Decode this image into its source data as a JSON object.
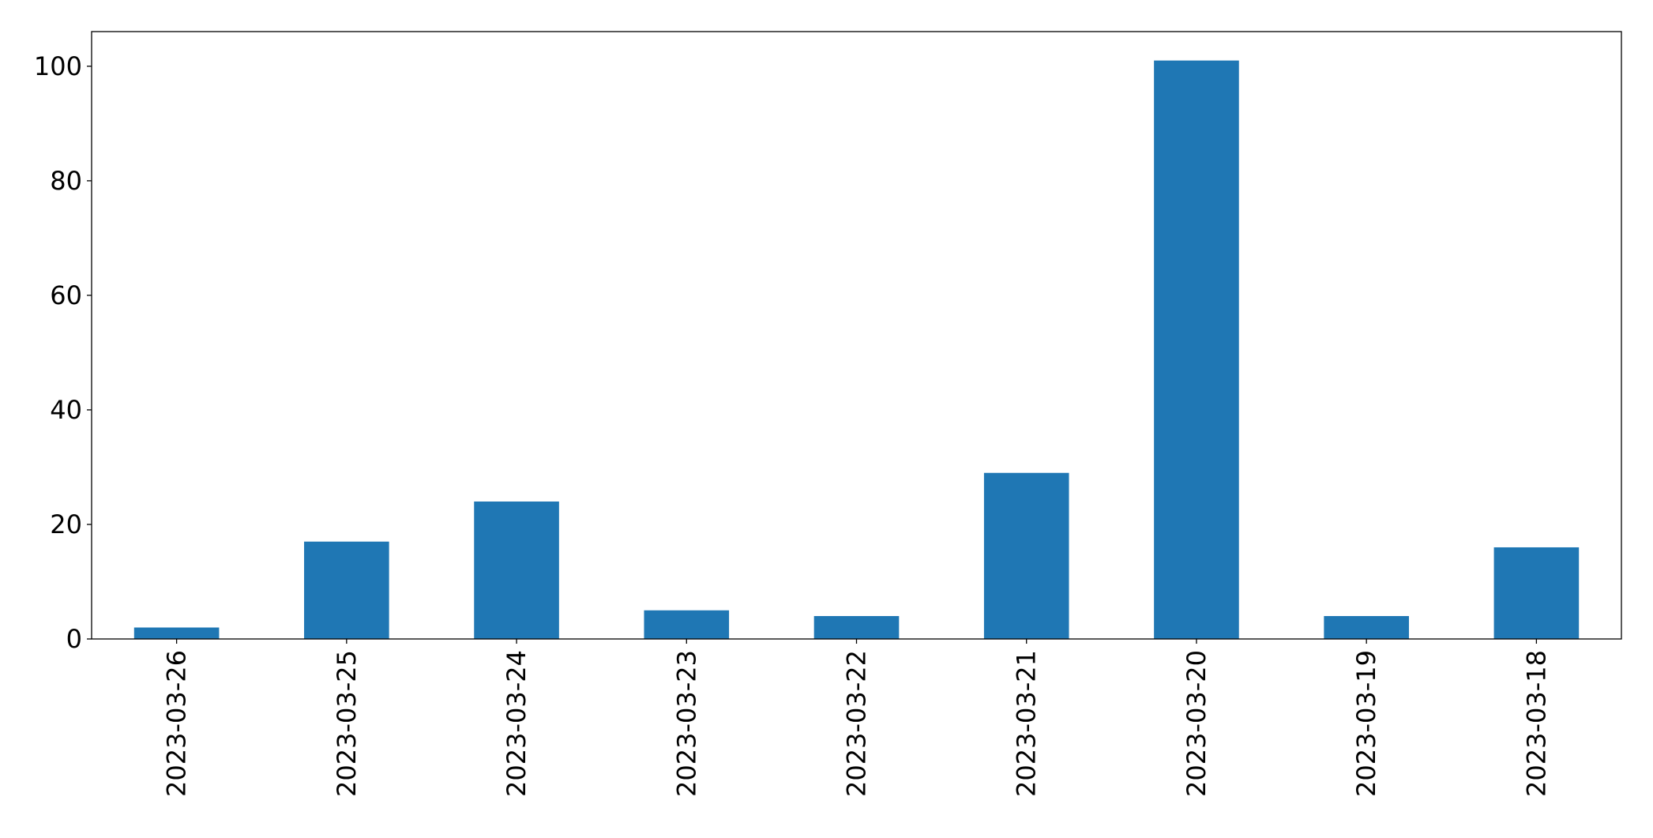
{
  "chart_data": {
    "type": "bar",
    "categories": [
      "2023-03-26",
      "2023-03-25",
      "2023-03-24",
      "2023-03-23",
      "2023-03-22",
      "2023-03-21",
      "2023-03-20",
      "2023-03-19",
      "2023-03-18"
    ],
    "values": [
      2,
      17,
      24,
      5,
      4,
      29,
      101,
      4,
      16
    ],
    "color": "#1f77b4",
    "ylim": [
      0,
      106.05
    ],
    "yticks": [
      0,
      20,
      40,
      60,
      80,
      100
    ],
    "grid": false
  }
}
